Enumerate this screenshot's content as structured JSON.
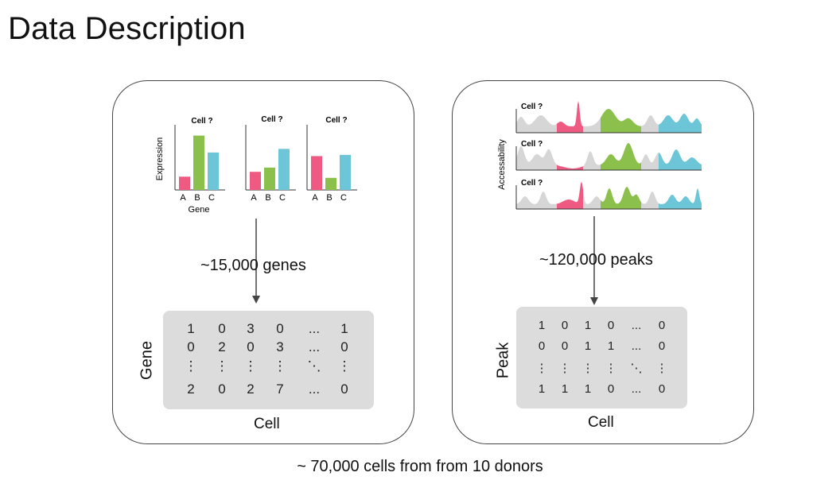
{
  "title": "Data Description",
  "footer": "~ 70,000 cells from from 10 donors",
  "colors": {
    "pink": "#ee5a82",
    "green": "#8cc04d",
    "blue": "#6cc6d8",
    "gray": "#d6d6d6"
  },
  "rna": {
    "y_axis_label": "Expression",
    "x_axis_label": "Gene",
    "cells": [
      {
        "title": "Cell ?",
        "genes": [
          "A",
          "B",
          "C"
        ],
        "values": [
          0.22,
          0.9,
          0.62
        ]
      },
      {
        "title": "Cell ?",
        "genes": [
          "A",
          "B",
          "C"
        ],
        "values": [
          0.3,
          0.37,
          0.68
        ]
      },
      {
        "title": "Cell ?",
        "genes": [
          "A",
          "B",
          "C"
        ],
        "values": [
          0.56,
          0.2,
          0.58
        ]
      }
    ],
    "count_label": "~15,000 genes",
    "matrix": {
      "rows": [
        [
          "1",
          "0",
          "3",
          "0",
          "...",
          "1"
        ],
        [
          "0",
          "2",
          "0",
          "3",
          "...",
          "0"
        ],
        [
          "⋮",
          "⋮",
          "⋮",
          "⋮",
          "⋱",
          "⋮"
        ],
        [
          "2",
          "0",
          "2",
          "7",
          "...",
          "0"
        ]
      ],
      "row_label": "Gene",
      "col_label": "Cell"
    }
  },
  "atac": {
    "y_axis_label": "Accessability",
    "tracks": [
      {
        "title": "Cell ?"
      },
      {
        "title": "Cell ?"
      },
      {
        "title": "Cell ?"
      }
    ],
    "count_label": "~120,000 peaks",
    "matrix": {
      "rows": [
        [
          "1",
          "0",
          "1",
          "0",
          "...",
          "0"
        ],
        [
          "0",
          "0",
          "1",
          "1",
          "...",
          "0"
        ],
        [
          "⋮",
          "⋮",
          "⋮",
          "⋮",
          "⋱",
          "⋮"
        ],
        [
          "1",
          "1",
          "1",
          "0",
          "...",
          "0"
        ]
      ],
      "row_label": "Peak",
      "col_label": "Cell"
    }
  }
}
